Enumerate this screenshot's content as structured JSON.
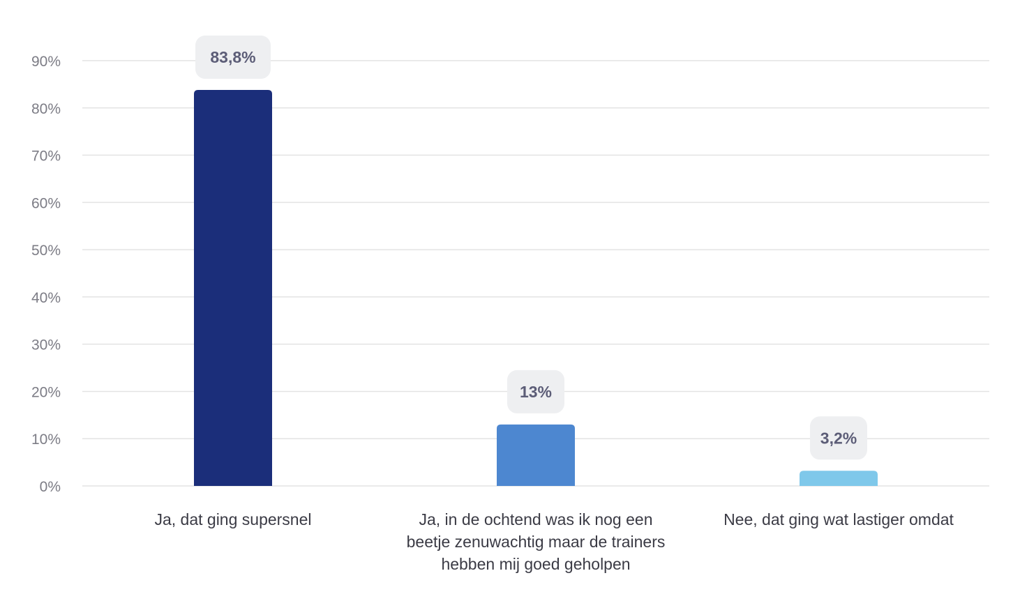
{
  "chart_data": {
    "type": "bar",
    "title": "",
    "xlabel": "",
    "ylabel": "",
    "ylim": [
      0,
      90
    ],
    "yticks": [
      0,
      10,
      20,
      30,
      40,
      50,
      60,
      70,
      80,
      90
    ],
    "ytick_labels": [
      "0%",
      "10%",
      "20%",
      "30%",
      "40%",
      "50%",
      "60%",
      "70%",
      "80%",
      "90%"
    ],
    "grid": true,
    "categories": [
      [
        "Ja, dat ging supersnel"
      ],
      [
        "Ja, in de ochtend was ik nog een",
        "beetje zenuwachtig maar de trainers",
        "hebben mij goed geholpen"
      ],
      [
        "Nee, dat ging wat lastiger omdat"
      ]
    ],
    "values": [
      83.8,
      13,
      3.2
    ],
    "value_labels": [
      "83,8%",
      "13%",
      "3,2%"
    ],
    "colors": [
      "#1b2e7a",
      "#4d87d0",
      "#7fc8ea"
    ]
  }
}
